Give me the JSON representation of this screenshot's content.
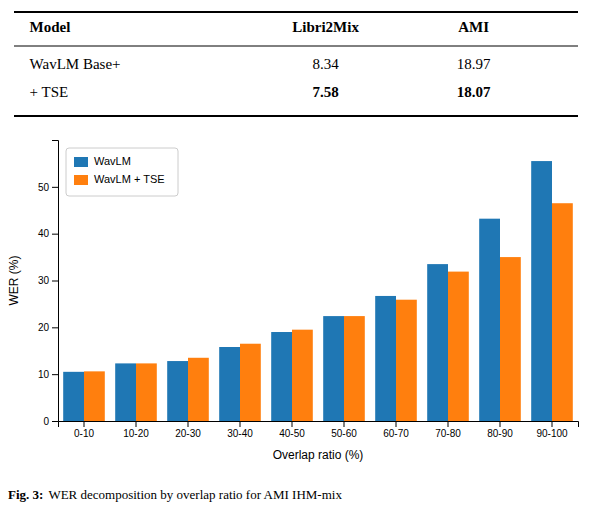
{
  "chart_data": {
    "type": "bar",
    "table": {
      "headers": [
        "Model",
        "Libri2Mix",
        "AMI"
      ],
      "rows": [
        [
          "WavLM Base+",
          "8.34",
          "18.97"
        ],
        [
          "+ TSE",
          "7.58",
          "18.07"
        ]
      ]
    },
    "caption": {
      "bold": "Fig. 3:",
      "text": "WER decomposition by overlap ratio for AMI IHM-mix"
    },
    "xlabel": "Overlap ratio (%)",
    "ylabel": "WER (%)",
    "categories": [
      "0-10",
      "10-20",
      "20-30",
      "30-40",
      "40-50",
      "50-60",
      "60-70",
      "70-80",
      "80-90",
      "90-100"
    ],
    "series": [
      {
        "name": "WavLM",
        "color": "#1f77b4",
        "values": [
          10.5,
          12.3,
          12.8,
          15.8,
          19.0,
          22.4,
          26.7,
          33.5,
          43.2,
          55.5
        ]
      },
      {
        "name": "WavLM + TSE",
        "color": "#ff7f0e",
        "values": [
          10.6,
          12.3,
          13.5,
          16.5,
          19.5,
          22.4,
          25.9,
          31.9,
          35.0,
          46.5
        ]
      }
    ],
    "ylim": [
      0,
      60
    ],
    "yticks": [
      0,
      10,
      20,
      30,
      40,
      50
    ],
    "grid": false,
    "legend": "upper left"
  }
}
